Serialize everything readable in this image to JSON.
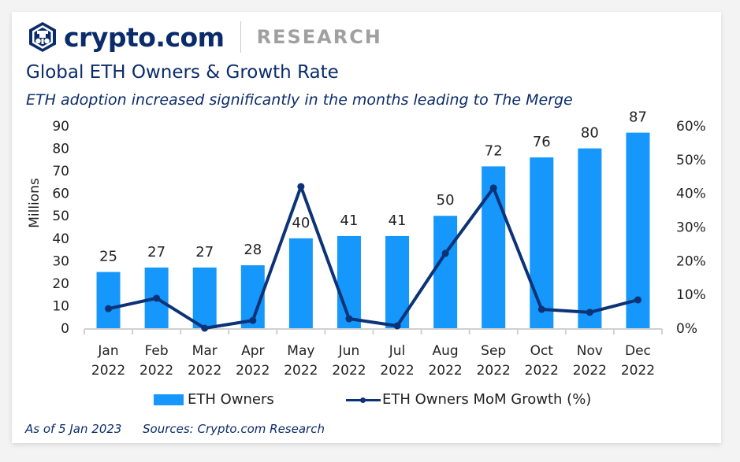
{
  "brand": {
    "logo": "crypto-com-lion-hexagon-icon",
    "name": "crypto.com",
    "section": "RESEARCH"
  },
  "header": {
    "title": "Global ETH Owners & Growth Rate",
    "subtitle": "ETH adoption increased significantly in the months leading to The Merge"
  },
  "colors": {
    "bar": "#1597fc",
    "line": "#0c3277",
    "title": "#0b2c6b",
    "brand_sub": "#a0a0a0",
    "axis": "#d0d0d0"
  },
  "chart_data": {
    "type": "bar",
    "title": "Global ETH Owners & Growth Rate",
    "categories": [
      [
        "Jan",
        "2022"
      ],
      [
        "Feb",
        "2022"
      ],
      [
        "Mar",
        "2022"
      ],
      [
        "Apr",
        "2022"
      ],
      [
        "May",
        "2022"
      ],
      [
        "Jun",
        "2022"
      ],
      [
        "Jul",
        "2022"
      ],
      [
        "Aug",
        "2022"
      ],
      [
        "Sep",
        "2022"
      ],
      [
        "Oct",
        "2022"
      ],
      [
        "Nov",
        "2022"
      ],
      [
        "Dec",
        "2022"
      ]
    ],
    "series": [
      {
        "name": "ETH Owners",
        "type": "bar",
        "axis": "left",
        "values": [
          25,
          27,
          27,
          28,
          40,
          41,
          41,
          50,
          72,
          76,
          80,
          87
        ],
        "data_labels": [
          "25",
          "27",
          "27",
          "28",
          "40",
          "41",
          "41",
          "50",
          "72",
          "76",
          "80",
          "87"
        ]
      },
      {
        "name": "ETH Owners MoM Growth (%)",
        "type": "line",
        "axis": "right",
        "values": [
          5.8,
          8.9,
          0.0,
          2.3,
          42.0,
          2.8,
          0.7,
          22.2,
          41.6,
          5.6,
          4.7,
          8.4
        ]
      }
    ],
    "ylabel": "Millions",
    "xlabel": "",
    "ylim": [
      0,
      90
    ],
    "yticks": [
      "0",
      "10",
      "20",
      "30",
      "40",
      "50",
      "60",
      "70",
      "80",
      "90"
    ],
    "y2lim": [
      0,
      60
    ],
    "y2ticks": [
      "0%",
      "10%",
      "20%",
      "30%",
      "40%",
      "50%",
      "60%"
    ],
    "grid": false,
    "legend_position": "bottom"
  },
  "legend": {
    "bar_label": "ETH Owners",
    "line_label": "ETH Owners MoM Growth (%)"
  },
  "footer": {
    "as_of": "As of 5 Jan 2023",
    "sources": "Sources: Crypto.com Research"
  }
}
